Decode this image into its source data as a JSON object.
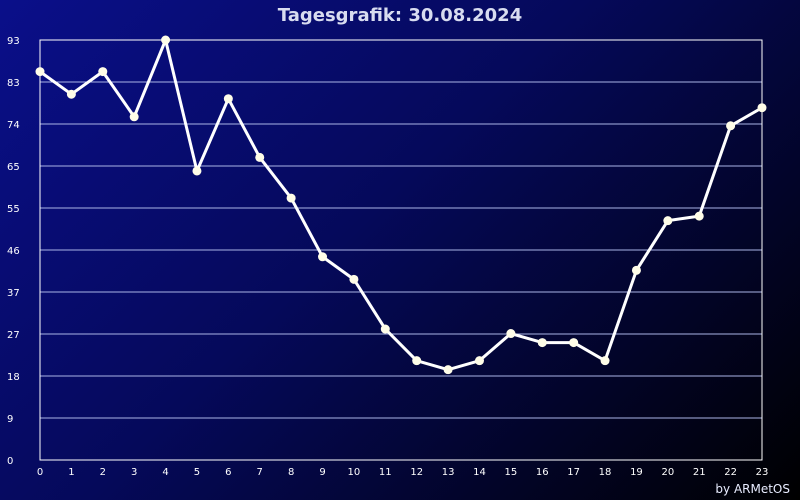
{
  "title": "Tagesgrafik: 30.08.2024",
  "credit": "by ARMetOS",
  "colors": {
    "line": "#ffffff",
    "marker": "#fffde8",
    "grid": "#aab4e6",
    "frame": "#ffffff"
  },
  "chart_data": {
    "type": "line",
    "title": "Tagesgrafik: 30.08.2024",
    "xlabel": "",
    "ylabel": "",
    "x": [
      0,
      1,
      2,
      3,
      4,
      5,
      6,
      7,
      8,
      9,
      10,
      11,
      12,
      13,
      14,
      15,
      16,
      17,
      18,
      19,
      20,
      21,
      22,
      23
    ],
    "y_ticks": [
      "0",
      "9",
      "18",
      "27",
      "37",
      "46",
      "55",
      "65",
      "74",
      "83",
      "93"
    ],
    "ylim": [
      0,
      93
    ],
    "xlim": [
      0,
      23
    ],
    "grid": true,
    "series": [
      {
        "values": [
          86,
          81,
          86,
          76,
          93,
          64,
          80,
          67,
          58,
          45,
          40,
          29,
          22,
          20,
          22,
          28,
          26,
          26,
          22,
          42,
          53,
          54,
          74,
          78
        ]
      }
    ]
  }
}
